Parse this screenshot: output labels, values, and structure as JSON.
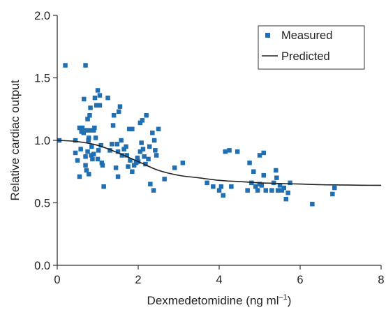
{
  "chart_data": {
    "type": "scatter",
    "xlabel": "Dexmedetomidine (ng ml",
    "xlabel_sup": "–1",
    "xlabel_close": ")",
    "ylabel": "Relative cardiac output",
    "xlim": [
      0,
      8
    ],
    "ylim": [
      0,
      2.0
    ],
    "x_ticks": [
      0,
      2,
      4,
      6,
      8
    ],
    "y_ticks": [
      0.0,
      0.5,
      1.0,
      1.5,
      2.0
    ],
    "y_tick_labels": [
      "0.0",
      "0.5",
      "1.0",
      "1.5",
      "2.0"
    ],
    "grid": false,
    "legend_position": "top-right",
    "colors": {
      "measured": "#1f6fb2",
      "predicted": "#222222"
    },
    "series": [
      {
        "name": "Measured",
        "kind": "scatter",
        "points": [
          [
            0.05,
            1.0
          ],
          [
            0.2,
            1.6
          ],
          [
            0.7,
            1.6
          ],
          [
            0.45,
            1.0
          ],
          [
            0.45,
            0.9
          ],
          [
            0.5,
            0.84
          ],
          [
            0.55,
            1.1
          ],
          [
            0.55,
            0.71
          ],
          [
            0.58,
            0.93
          ],
          [
            0.6,
            1.07
          ],
          [
            0.62,
            1.1
          ],
          [
            0.65,
            1.06
          ],
          [
            0.66,
            1.33
          ],
          [
            0.7,
            0.87
          ],
          [
            0.7,
            0.8
          ],
          [
            0.72,
            0.76
          ],
          [
            0.72,
            1.08
          ],
          [
            0.75,
            1.17
          ],
          [
            0.75,
            0.91
          ],
          [
            0.77,
            1.0
          ],
          [
            0.78,
            1.02
          ],
          [
            0.78,
            0.73
          ],
          [
            0.8,
            1.08
          ],
          [
            0.8,
            1.2
          ],
          [
            0.82,
            1.26
          ],
          [
            0.84,
            0.88
          ],
          [
            0.85,
            0.95
          ],
          [
            0.87,
            0.85
          ],
          [
            0.9,
            1.08
          ],
          [
            0.9,
            0.89
          ],
          [
            0.92,
            1.1
          ],
          [
            0.93,
            1.34
          ],
          [
            0.95,
            1.02
          ],
          [
            0.97,
            1.28
          ],
          [
            1.0,
            0.85
          ],
          [
            1.0,
            1.4
          ],
          [
            1.02,
            0.92
          ],
          [
            1.05,
            1.36
          ],
          [
            1.05,
            1.28
          ],
          [
            1.08,
            0.96
          ],
          [
            1.1,
            0.82
          ],
          [
            1.12,
            0.8
          ],
          [
            1.15,
            0.63
          ],
          [
            1.25,
            1.34
          ],
          [
            1.3,
            0.92
          ],
          [
            1.35,
            0.97
          ],
          [
            1.38,
            1.12
          ],
          [
            1.4,
            1.2
          ],
          [
            1.45,
            0.78
          ],
          [
            1.48,
            0.97
          ],
          [
            1.5,
            0.91
          ],
          [
            1.5,
            0.71
          ],
          [
            1.52,
            1.23
          ],
          [
            1.55,
            1.27
          ],
          [
            1.58,
            1.0
          ],
          [
            1.6,
            0.88
          ],
          [
            1.65,
            0.93
          ],
          [
            1.7,
            0.95
          ],
          [
            1.72,
            0.88
          ],
          [
            1.75,
            0.79
          ],
          [
            1.78,
            1.09
          ],
          [
            1.8,
            0.84
          ],
          [
            1.85,
            0.75
          ],
          [
            1.85,
            1.09
          ],
          [
            1.9,
            0.8
          ],
          [
            1.95,
            0.82
          ],
          [
            1.98,
            0.86
          ],
          [
            2.0,
            0.83
          ],
          [
            2.05,
            1.14
          ],
          [
            2.05,
            0.91
          ],
          [
            2.08,
            0.98
          ],
          [
            2.1,
            1.16
          ],
          [
            2.12,
            0.93
          ],
          [
            2.15,
            0.87
          ],
          [
            2.18,
            0.81
          ],
          [
            2.2,
            1.2
          ],
          [
            2.25,
            0.85
          ],
          [
            2.28,
            0.95
          ],
          [
            2.3,
            0.65
          ],
          [
            2.35,
            1.06
          ],
          [
            2.38,
            0.6
          ],
          [
            2.4,
            1.0
          ],
          [
            2.42,
            0.92
          ],
          [
            2.45,
            0.88
          ],
          [
            2.5,
            1.09
          ],
          [
            2.65,
            0.69
          ],
          [
            2.9,
            0.78
          ],
          [
            3.1,
            0.82
          ],
          [
            3.7,
            0.66
          ],
          [
            3.85,
            0.63
          ],
          [
            4.0,
            0.6
          ],
          [
            4.05,
            0.63
          ],
          [
            4.1,
            0.56
          ],
          [
            4.15,
            0.91
          ],
          [
            4.25,
            0.92
          ],
          [
            4.3,
            0.63
          ],
          [
            4.45,
            0.91
          ],
          [
            4.7,
            0.6
          ],
          [
            4.75,
            0.82
          ],
          [
            4.8,
            0.66
          ],
          [
            4.85,
            0.75
          ],
          [
            4.9,
            0.63
          ],
          [
            4.95,
            0.6
          ],
          [
            5.0,
            0.65
          ],
          [
            5.0,
            0.88
          ],
          [
            5.05,
            0.64
          ],
          [
            5.1,
            0.72
          ],
          [
            5.1,
            0.9
          ],
          [
            5.15,
            0.6
          ],
          [
            5.3,
            0.6
          ],
          [
            5.35,
            0.66
          ],
          [
            5.4,
            0.76
          ],
          [
            5.42,
            0.7
          ],
          [
            5.45,
            0.6
          ],
          [
            5.5,
            0.64
          ],
          [
            5.55,
            0.6
          ],
          [
            5.6,
            0.62
          ],
          [
            5.65,
            0.53
          ],
          [
            5.7,
            0.58
          ],
          [
            5.75,
            0.66
          ],
          [
            6.3,
            0.49
          ],
          [
            6.8,
            0.57
          ],
          [
            6.85,
            0.62
          ]
        ]
      },
      {
        "name": "Predicted",
        "kind": "line",
        "points": [
          [
            0,
            1.0
          ],
          [
            0.5,
            0.99
          ],
          [
            1.0,
            0.96
          ],
          [
            1.5,
            0.9
          ],
          [
            2.0,
            0.83
          ],
          [
            2.5,
            0.76
          ],
          [
            3.0,
            0.72
          ],
          [
            3.5,
            0.7
          ],
          [
            4.0,
            0.68
          ],
          [
            4.5,
            0.67
          ],
          [
            5.0,
            0.66
          ],
          [
            5.5,
            0.655
          ],
          [
            6.0,
            0.65
          ],
          [
            6.5,
            0.645
          ],
          [
            7.0,
            0.643
          ],
          [
            7.5,
            0.641
          ],
          [
            8.0,
            0.64
          ]
        ]
      }
    ]
  }
}
